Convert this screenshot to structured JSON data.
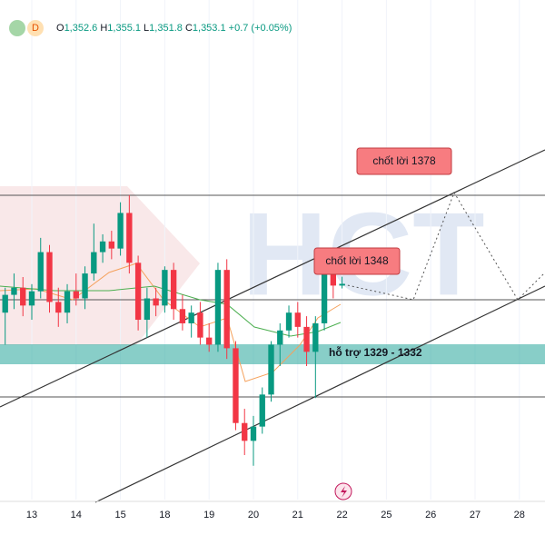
{
  "chart_data": {
    "type": "candlestick",
    "header": {
      "interval": "D",
      "open_label": "O",
      "open": "1,352.6",
      "high_label": "H",
      "high": "1,355.1",
      "low_label": "L",
      "low": "1,351.8",
      "close_label": "C",
      "close": "1,353.1",
      "change": "+0.7 (+0.05%)"
    },
    "watermark": "HCT",
    "annotations": [
      "chốt lời 1378",
      "chốt lời 1348",
      "hỗ trợ 1329 - 1332"
    ],
    "up_color": "#089981",
    "down_color": "#f23645",
    "xlim": [
      -0.717,
      11.578
    ],
    "xticks": [
      {
        "value": 0,
        "label": "13"
      },
      {
        "value": 1,
        "label": "14"
      },
      {
        "value": 2,
        "label": "15"
      },
      {
        "value": 3,
        "label": "18"
      },
      {
        "value": 4,
        "label": "19"
      },
      {
        "value": 5,
        "label": "20"
      },
      {
        "value": 6,
        "label": "21"
      },
      {
        "value": 7,
        "label": "22"
      },
      {
        "value": 8,
        "label": "25"
      },
      {
        "value": 9,
        "label": "26"
      },
      {
        "value": 10,
        "label": "27"
      },
      {
        "value": 11,
        "label": "28"
      }
    ],
    "ylim": [
      1292.5,
      1422.6
    ],
    "x": [
      -0.6,
      -0.4,
      -0.2,
      0,
      0.2,
      0.4,
      0.6,
      0.8,
      1,
      1.2,
      1.4,
      1.6,
      1.8,
      2,
      2.2,
      2.4,
      2.6,
      2.8,
      3,
      3.2,
      3.4,
      3.6,
      3.8,
      4,
      4.2,
      4.4,
      4.6,
      4.8,
      5,
      5.2,
      5.4,
      5.6,
      5.8,
      6,
      6.2,
      6.4,
      6.6,
      6.8,
      7
    ],
    "open": [
      1345,
      1350,
      1352,
      1347,
      1351,
      1362,
      1348,
      1345,
      1351,
      1349,
      1356,
      1362,
      1365,
      1363,
      1373,
      1359,
      1343,
      1349,
      1347,
      1357,
      1346,
      1342,
      1345,
      1338,
      1336,
      1357,
      1335,
      1314,
      1309,
      1313,
      1322,
      1336,
      1340,
      1345,
      1341,
      1334,
      1342,
      1356,
      1352.6
    ],
    "high": [
      1352,
      1356,
      1355,
      1353,
      1366,
      1364,
      1352,
      1353,
      1356,
      1358,
      1370,
      1367,
      1368,
      1376,
      1378,
      1361,
      1352,
      1352,
      1358,
      1359,
      1350,
      1347,
      1348,
      1342,
      1359,
      1360,
      1337,
      1318,
      1316,
      1324,
      1337,
      1342,
      1347,
      1348,
      1344,
      1344,
      1358,
      1358,
      1355.1
    ],
    "low": [
      1336,
      1346,
      1344,
      1343,
      1349,
      1345,
      1341,
      1342,
      1347,
      1346,
      1354,
      1359,
      1360,
      1361,
      1356,
      1340,
      1338,
      1344,
      1345,
      1343,
      1340,
      1338,
      1336,
      1334,
      1334,
      1332,
      1312,
      1305,
      1302,
      1311,
      1320,
      1330,
      1338,
      1338,
      1330,
      1321,
      1340,
      1349,
      1351.8
    ],
    "close": [
      1350,
      1352,
      1347,
      1351,
      1362,
      1348,
      1345,
      1351,
      1349,
      1356,
      1362,
      1365,
      1363,
      1373,
      1359,
      1343,
      1349,
      1347,
      1357,
      1346,
      1342,
      1345,
      1338,
      1336,
      1357,
      1335,
      1314,
      1309,
      1313,
      1322,
      1336,
      1340,
      1345,
      1341,
      1334,
      1342,
      1356,
      1352.6,
      1353.1
    ]
  }
}
